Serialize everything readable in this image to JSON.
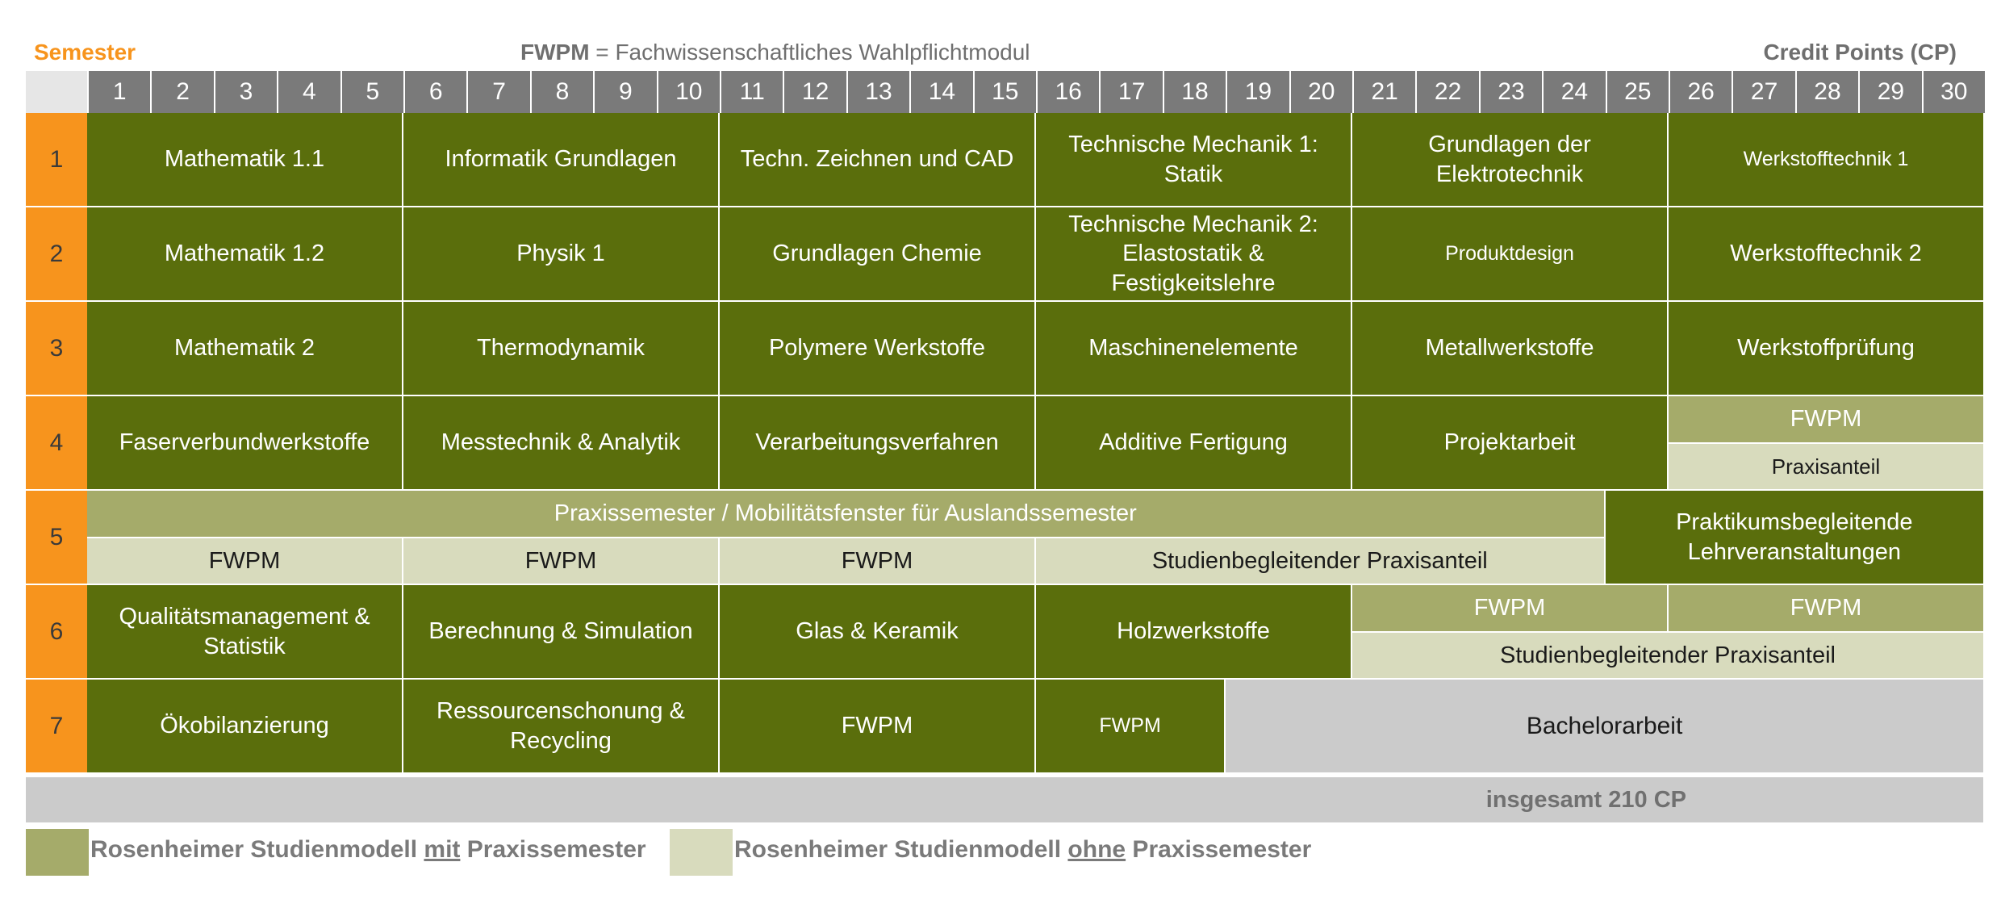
{
  "header": {
    "semester_label": "Semester",
    "fwpm_abbr": "FWPM",
    "fwpm_eq": " = ",
    "fwpm_def": "Fachwissenschaftliches Wahlpflichtmodul",
    "cp_label": "Credit Points (CP)"
  },
  "cp_numbers": [
    "1",
    "2",
    "3",
    "4",
    "5",
    "6",
    "7",
    "8",
    "9",
    "10",
    "11",
    "12",
    "13",
    "14",
    "15",
    "16",
    "17",
    "18",
    "19",
    "20",
    "21",
    "22",
    "23",
    "24",
    "25",
    "26",
    "27",
    "28",
    "29",
    "30"
  ],
  "semesters": [
    "1",
    "2",
    "3",
    "4",
    "5",
    "6",
    "7"
  ],
  "modules": [
    {
      "row": 0,
      "sub": "full",
      "start": 0,
      "span": 5,
      "style": "dark",
      "label": "Mathematik 1.1"
    },
    {
      "row": 0,
      "sub": "full",
      "start": 5,
      "span": 5,
      "style": "dark",
      "label": "Informatik Grundlagen"
    },
    {
      "row": 0,
      "sub": "full",
      "start": 10,
      "span": 5,
      "style": "dark",
      "label": "Techn. Zeichnen und CAD"
    },
    {
      "row": 0,
      "sub": "full",
      "start": 15,
      "span": 5,
      "style": "dark",
      "label": "Technische Mechanik 1: Statik"
    },
    {
      "row": 0,
      "sub": "full",
      "start": 20,
      "span": 5,
      "style": "dark",
      "label": "Grundlagen der Elektrotechnik"
    },
    {
      "row": 0,
      "sub": "full",
      "start": 25,
      "span": 5,
      "style": "dark thin",
      "label": "Werkstofftechnik 1"
    },
    {
      "row": 1,
      "sub": "full",
      "start": 0,
      "span": 5,
      "style": "dark",
      "label": "Mathematik 1.2"
    },
    {
      "row": 1,
      "sub": "full",
      "start": 5,
      "span": 5,
      "style": "dark",
      "label": "Physik 1"
    },
    {
      "row": 1,
      "sub": "full",
      "start": 10,
      "span": 5,
      "style": "dark",
      "label": "Grundlagen Chemie"
    },
    {
      "row": 1,
      "sub": "full",
      "start": 15,
      "span": 5,
      "style": "dark",
      "label": "Technische Mechanik 2: Elastostatik & Festigkeitslehre"
    },
    {
      "row": 1,
      "sub": "full",
      "start": 20,
      "span": 5,
      "style": "dark thin",
      "label": "Produktdesign"
    },
    {
      "row": 1,
      "sub": "full",
      "start": 25,
      "span": 5,
      "style": "dark",
      "label": "Werkstofftechnik 2"
    },
    {
      "row": 2,
      "sub": "full",
      "start": 0,
      "span": 5,
      "style": "dark",
      "label": "Mathematik 2"
    },
    {
      "row": 2,
      "sub": "full",
      "start": 5,
      "span": 5,
      "style": "dark",
      "label": "Thermodynamik"
    },
    {
      "row": 2,
      "sub": "full",
      "start": 10,
      "span": 5,
      "style": "dark",
      "label": "Polymere Werkstoffe"
    },
    {
      "row": 2,
      "sub": "full",
      "start": 15,
      "span": 5,
      "style": "dark",
      "label": "Maschinenelemente"
    },
    {
      "row": 2,
      "sub": "full",
      "start": 20,
      "span": 5,
      "style": "dark",
      "label": "Metallwerkstoffe"
    },
    {
      "row": 2,
      "sub": "full",
      "start": 25,
      "span": 5,
      "style": "dark",
      "label": "Werkstoffprüfung"
    },
    {
      "row": 3,
      "sub": "full",
      "start": 0,
      "span": 5,
      "style": "dark",
      "label": "Faserverbundwerkstoffe"
    },
    {
      "row": 3,
      "sub": "full",
      "start": 5,
      "span": 5,
      "style": "dark",
      "label": "Messtechnik & Analytik"
    },
    {
      "row": 3,
      "sub": "full",
      "start": 10,
      "span": 5,
      "style": "dark",
      "label": "Verarbeitungsverfahren"
    },
    {
      "row": 3,
      "sub": "full",
      "start": 15,
      "span": 5,
      "style": "dark",
      "label": "Additive Fertigung"
    },
    {
      "row": 3,
      "sub": "full",
      "start": 20,
      "span": 5,
      "style": "dark",
      "label": "Projektarbeit"
    },
    {
      "row": 3,
      "sub": "top",
      "start": 25,
      "span": 5,
      "style": "mid",
      "label": "FWPM"
    },
    {
      "row": 3,
      "sub": "bottom",
      "start": 25,
      "span": 5,
      "style": "light small",
      "label": "Praxisanteil"
    },
    {
      "row": 4,
      "sub": "top",
      "start": 0,
      "span": 24,
      "style": "mid",
      "label": "Praxissemester / Mobilitätsfenster für Auslandssemester"
    },
    {
      "row": 4,
      "sub": "full",
      "start": 24,
      "span": 6,
      "style": "dark",
      "label": "Praktikumsbegleitende Lehrveranstaltungen"
    },
    {
      "row": 4,
      "sub": "bottom",
      "start": 0,
      "span": 5,
      "style": "light",
      "label": "FWPM"
    },
    {
      "row": 4,
      "sub": "bottom",
      "start": 5,
      "span": 5,
      "style": "light",
      "label": "FWPM"
    },
    {
      "row": 4,
      "sub": "bottom",
      "start": 10,
      "span": 5,
      "style": "light",
      "label": "FWPM"
    },
    {
      "row": 4,
      "sub": "bottom",
      "start": 15,
      "span": 9,
      "style": "light",
      "label": "Studienbegleitender Praxisanteil"
    },
    {
      "row": 5,
      "sub": "full",
      "start": 0,
      "span": 5,
      "style": "dark",
      "label": "Qualitätsmanagement & Statistik"
    },
    {
      "row": 5,
      "sub": "full",
      "start": 5,
      "span": 5,
      "style": "dark",
      "label": "Berechnung & Simulation"
    },
    {
      "row": 5,
      "sub": "full",
      "start": 10,
      "span": 5,
      "style": "dark",
      "label": "Glas & Keramik"
    },
    {
      "row": 5,
      "sub": "full",
      "start": 15,
      "span": 5,
      "style": "dark",
      "label": "Holzwerkstoffe"
    },
    {
      "row": 5,
      "sub": "top",
      "start": 20,
      "span": 5,
      "style": "mid",
      "label": "FWPM"
    },
    {
      "row": 5,
      "sub": "top",
      "start": 25,
      "span": 5,
      "style": "mid",
      "label": "FWPM"
    },
    {
      "row": 5,
      "sub": "bottom",
      "start": 20,
      "span": 10,
      "style": "light",
      "label": "Studienbegleitender Praxisanteil"
    },
    {
      "row": 6,
      "sub": "full",
      "start": 0,
      "span": 5,
      "style": "dark",
      "label": "Ökobilanzierung"
    },
    {
      "row": 6,
      "sub": "full",
      "start": 5,
      "span": 5,
      "style": "dark",
      "label": "Ressourcenschonung & Recycling"
    },
    {
      "row": 6,
      "sub": "full",
      "start": 10,
      "span": 5,
      "style": "dark",
      "label": "FWPM"
    },
    {
      "row": 6,
      "sub": "full",
      "start": 15,
      "span": 3,
      "style": "dark thin",
      "label": "FWPM"
    },
    {
      "row": 6,
      "sub": "full",
      "start": 18,
      "span": 12,
      "style": "grey",
      "label": "Bachelorarbeit"
    }
  ],
  "total": "insgesamt 210 CP",
  "legend": {
    "with_prefix": "Rosenheimer Studienmodell ",
    "with_key": "mit",
    "with_suffix": " Praxissemester",
    "without_prefix": "Rosenheimer Studienmodell ",
    "without_key": "ohne",
    "without_suffix": " Praxissemester",
    "color_with": "#a5ab6a",
    "color_without": "#d8dbbd"
  },
  "colors": {
    "module_dark": "#5a6e0c",
    "praxis_mid": "#a5ab6a",
    "praxis_light": "#d8dbbd",
    "semester_orange": "#f7941d",
    "header_grey": "#7a7a7a",
    "thesis_grey": "#cbcbcb"
  }
}
